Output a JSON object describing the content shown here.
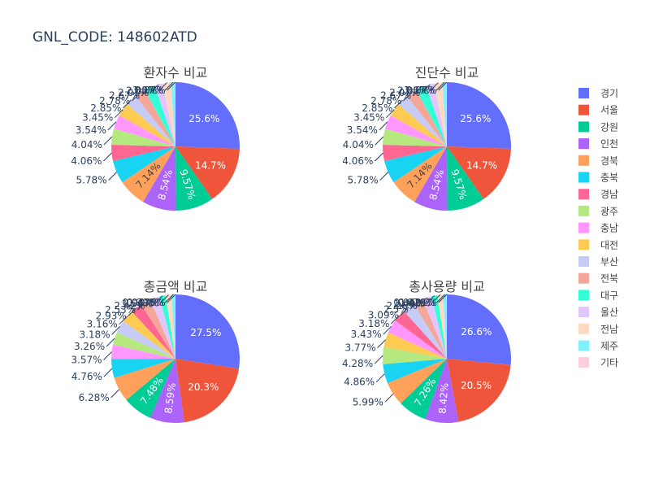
{
  "title": "GNL_CODE: 148602ATD",
  "legend": {
    "items": [
      {
        "label": "경기",
        "color": "#636efa"
      },
      {
        "label": "서울",
        "color": "#ef553b"
      },
      {
        "label": "강원",
        "color": "#00cc96"
      },
      {
        "label": "인천",
        "color": "#ab63fa"
      },
      {
        "label": "경북",
        "color": "#ffa15a"
      },
      {
        "label": "충북",
        "color": "#19d3f3"
      },
      {
        "label": "경남",
        "color": "#ff6692"
      },
      {
        "label": "광주",
        "color": "#b6e880"
      },
      {
        "label": "충남",
        "color": "#ff97ff"
      },
      {
        "label": "대전",
        "color": "#fecb52"
      },
      {
        "label": "부산",
        "color": "#c6cbf8"
      },
      {
        "label": "전북",
        "color": "#f4a799"
      },
      {
        "label": "대구",
        "color": "#33ffd6"
      },
      {
        "label": "울산",
        "color": "#e2c5fd"
      },
      {
        "label": "전남",
        "color": "#ffdac1"
      },
      {
        "label": "제주",
        "color": "#7ff0fe"
      },
      {
        "label": "기타",
        "color": "#ffcddd"
      }
    ]
  },
  "chart_data": [
    {
      "type": "pie",
      "title": "환자수 비교",
      "slices": [
        {
          "label": "경기",
          "text": "25.6%",
          "value": 25.6
        },
        {
          "label": "서울",
          "text": "14.7%",
          "value": 14.7
        },
        {
          "label": "강원",
          "text": "9.57%",
          "value": 9.57
        },
        {
          "label": "인천",
          "text": "8.54%",
          "value": 8.54
        },
        {
          "label": "경북",
          "text": "7.14%",
          "value": 7.14
        },
        {
          "label": "충북",
          "text": "5.78%",
          "value": 5.78
        },
        {
          "label": "경남",
          "text": "4.06%",
          "value": 4.06
        },
        {
          "label": "광주",
          "text": "4.04%",
          "value": 4.04
        },
        {
          "label": "충남",
          "text": "3.54%",
          "value": 3.54
        },
        {
          "label": "대전",
          "text": "3.45%",
          "value": 3.45
        },
        {
          "label": "부산",
          "text": "2.85%",
          "value": 2.85
        },
        {
          "label": "전북",
          "text": "2.78%",
          "value": 2.78
        },
        {
          "label": "대구",
          "text": "2.67%",
          "value": 2.67
        },
        {
          "label": "울산",
          "text": "2.07%",
          "value": 2.07
        },
        {
          "label": "전남",
          "text": "2.05%",
          "value": 2.05
        },
        {
          "label": "제주",
          "text": "1.07%",
          "value": 1.07
        },
        {
          "label": "기타",
          "text": "0.07%",
          "value": 0.07
        }
      ]
    },
    {
      "type": "pie",
      "title": "진단수 비교",
      "slices": [
        {
          "label": "경기",
          "text": "25.6%",
          "value": 25.6
        },
        {
          "label": "서울",
          "text": "14.7%",
          "value": 14.7
        },
        {
          "label": "강원",
          "text": "9.57%",
          "value": 9.57
        },
        {
          "label": "인천",
          "text": "8.54%",
          "value": 8.54
        },
        {
          "label": "경북",
          "text": "7.14%",
          "value": 7.14
        },
        {
          "label": "충북",
          "text": "5.78%",
          "value": 5.78
        },
        {
          "label": "경남",
          "text": "4.06%",
          "value": 4.06
        },
        {
          "label": "광주",
          "text": "4.04%",
          "value": 4.04
        },
        {
          "label": "충남",
          "text": "3.54%",
          "value": 3.54
        },
        {
          "label": "대전",
          "text": "3.45%",
          "value": 3.45
        },
        {
          "label": "부산",
          "text": "2.85%",
          "value": 2.85
        },
        {
          "label": "전북",
          "text": "2.78%",
          "value": 2.78
        },
        {
          "label": "대구",
          "text": "2.67%",
          "value": 2.67
        },
        {
          "label": "울산",
          "text": "2.07%",
          "value": 2.07
        },
        {
          "label": "전남",
          "text": "2.05%",
          "value": 2.05
        },
        {
          "label": "제주",
          "text": "1.07%",
          "value": 1.07
        },
        {
          "label": "기타",
          "text": "0.07%",
          "value": 0.07
        }
      ]
    },
    {
      "type": "pie",
      "title": "총금액 비교",
      "slices": [
        {
          "label": "경기",
          "text": "27.5%",
          "value": 27.5
        },
        {
          "label": "서울",
          "text": "20.3%",
          "value": 20.3
        },
        {
          "label": "인천",
          "text": "8.59%",
          "value": 8.59
        },
        {
          "label": "강원",
          "text": "7.48%",
          "value": 7.48
        },
        {
          "label": "경북",
          "text": "6.28%",
          "value": 6.28
        },
        {
          "label": "충북",
          "text": "4.76%",
          "value": 4.76
        },
        {
          "label": "충남",
          "text": "3.57%",
          "value": 3.57
        },
        {
          "label": "광주",
          "text": "3.26%",
          "value": 3.26
        },
        {
          "label": "부산",
          "text": "3.18%",
          "value": 3.18
        },
        {
          "label": "대전",
          "text": "3.16%",
          "value": 3.16
        },
        {
          "label": "경남",
          "text": "2.93%",
          "value": 2.93
        },
        {
          "label": "전북",
          "text": "2.53%",
          "value": 2.53
        },
        {
          "label": "울산",
          "text": "2.42%",
          "value": 2.42
        },
        {
          "label": "대구",
          "text": "1.56%",
          "value": 1.56
        },
        {
          "label": "전남",
          "text": "1.47%",
          "value": 1.47
        },
        {
          "label": "제주",
          "text": "0.908%",
          "value": 0.908
        },
        {
          "label": "기타",
          "text": "0.0778%",
          "value": 0.0778
        }
      ]
    },
    {
      "type": "pie",
      "title": "총사용량 비교",
      "slices": [
        {
          "label": "경기",
          "text": "26.6%",
          "value": 26.6
        },
        {
          "label": "서울",
          "text": "20.5%",
          "value": 20.5
        },
        {
          "label": "인천",
          "text": "8.42%",
          "value": 8.42
        },
        {
          "label": "강원",
          "text": "7.26%",
          "value": 7.26
        },
        {
          "label": "경북",
          "text": "5.99%",
          "value": 5.99
        },
        {
          "label": "충북",
          "text": "4.86%",
          "value": 4.86
        },
        {
          "label": "광주",
          "text": "4.28%",
          "value": 4.28
        },
        {
          "label": "대전",
          "text": "3.77%",
          "value": 3.77
        },
        {
          "label": "충남",
          "text": "3.43%",
          "value": 3.43
        },
        {
          "label": "경남",
          "text": "3.18%",
          "value": 3.18
        },
        {
          "label": "부산",
          "text": "3.09%",
          "value": 3.09
        },
        {
          "label": "전북",
          "text": "2.5%",
          "value": 2.5
        },
        {
          "label": "울산",
          "text": "2.26%",
          "value": 2.26
        },
        {
          "label": "대구",
          "text": "1.49%",
          "value": 1.49
        },
        {
          "label": "전남",
          "text": "1.42%",
          "value": 1.42
        },
        {
          "label": "제주",
          "text": "0.879%",
          "value": 0.879
        },
        {
          "label": "기타",
          "text": "0.0691%",
          "value": 0.0691
        }
      ]
    }
  ]
}
